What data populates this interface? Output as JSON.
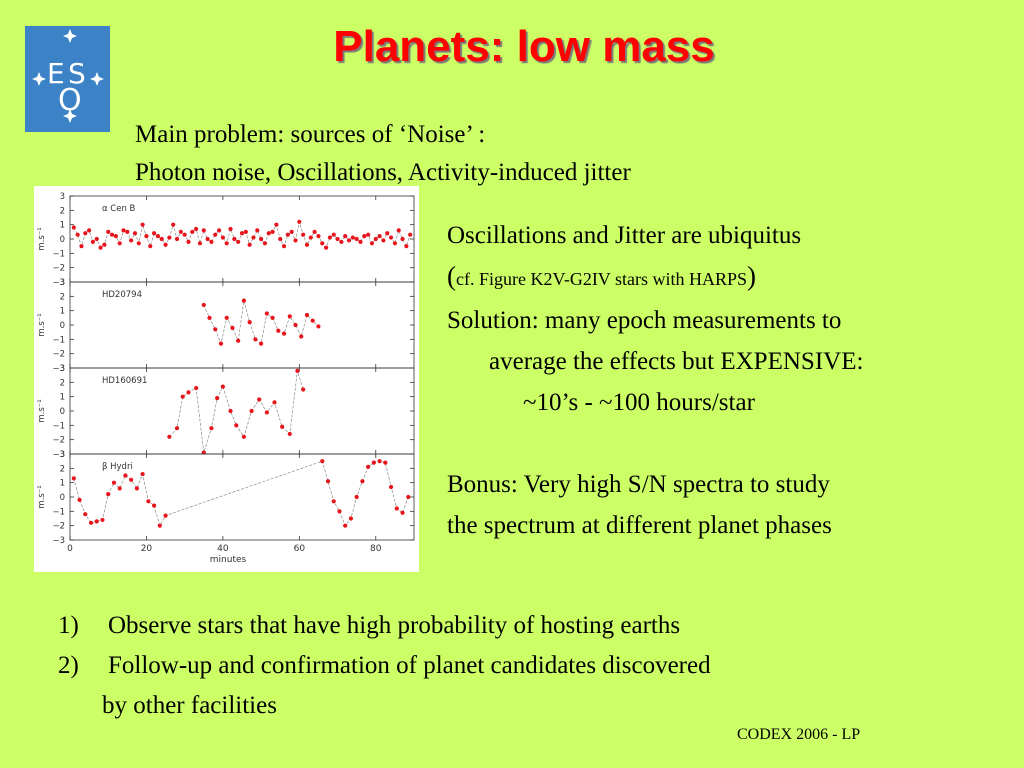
{
  "title": "Planets: low mass",
  "logo": {
    "letters": [
      "E",
      "S",
      "O"
    ],
    "icon": "eso-logo"
  },
  "intro": [
    "Main problem: sources of ‘Noise’ :",
    "Photon noise, Oscillations, Activity-induced jitter"
  ],
  "right": {
    "line1": "Oscillations and Jitter are ubiquitus",
    "line2_open": "(",
    "line2_text": "cf. Figure K2V-G2IV stars with HARPS",
    "line2_close": ")",
    "line3": "Solution: many epoch measurements to",
    "line4": "average the effects but EXPENSIVE:",
    "line5": "~10’s - ~100 hours/star",
    "line6": "Bonus: Very high S/N spectra to study",
    "line7": "the spectrum at different planet phases"
  },
  "list": {
    "items": [
      {
        "num": "1)",
        "text": "Observe stars that have high probability of hosting earths"
      },
      {
        "num": "2)",
        "text": "Follow-up and confirmation of planet candidates discovered"
      }
    ],
    "continuation": "by other facilities"
  },
  "footer": "CODEX  2006 - LP",
  "chart_data": {
    "type": "scatter",
    "xlabel": "minutes",
    "xticks": [
      0,
      20,
      40,
      60,
      80
    ],
    "xlim": [
      0,
      90
    ],
    "ylabel": "m.s⁻¹",
    "panels": [
      {
        "name": "α Cen B",
        "ylim": [
          -3,
          3
        ],
        "yticks": [
          3,
          2,
          1,
          0,
          -1,
          -2,
          -3
        ],
        "x": [
          1,
          2,
          3,
          4,
          5,
          6,
          7,
          8,
          9,
          10,
          11,
          12,
          13,
          14,
          15,
          16,
          17,
          18,
          19,
          20,
          21,
          22,
          23,
          24,
          25,
          26,
          27,
          28,
          29,
          30,
          31,
          32,
          33,
          34,
          35,
          36,
          37,
          38,
          39,
          40,
          41,
          42,
          43,
          44,
          45,
          46,
          47,
          48,
          49,
          50,
          51,
          52,
          53,
          54,
          55,
          56,
          57,
          58,
          59,
          60,
          61,
          62,
          63,
          64,
          65,
          66,
          67,
          68,
          69,
          70,
          71,
          72,
          73,
          74,
          75,
          76,
          77,
          78,
          79,
          80,
          81,
          82,
          83,
          84,
          85,
          86,
          87,
          88,
          89
        ],
        "y": [
          0.8,
          0.3,
          -0.5,
          0.4,
          0.6,
          -0.2,
          0,
          -0.6,
          -0.4,
          0.5,
          0.3,
          0.2,
          -0.3,
          0.6,
          0.5,
          -0.1,
          0.4,
          -0.3,
          1.0,
          0.2,
          -0.5,
          0.4,
          0.2,
          0,
          -0.4,
          0.1,
          1.0,
          0,
          0.5,
          0.3,
          -0.2,
          0.5,
          0.7,
          -0.3,
          0.6,
          0,
          -0.2,
          0.3,
          0.6,
          0.1,
          -0.3,
          0.7,
          0,
          -0.2,
          0.4,
          0.5,
          -0.4,
          0.1,
          0.6,
          0,
          -0.3,
          0.4,
          0.5,
          1.0,
          0,
          -0.5,
          0.3,
          0.5,
          -0.1,
          1.2,
          0.3,
          -0.4,
          0.1,
          0.5,
          0.2,
          -0.3,
          -0.6,
          0.1,
          0.3,
          0,
          -0.2,
          0.2,
          -0.1,
          0.1,
          0,
          -0.2,
          0.2,
          0.3,
          -0.3,
          0,
          0.2,
          -0.1,
          0.4,
          0.1,
          -0.3,
          0.6,
          0,
          -0.5,
          0.3
        ]
      },
      {
        "name": "HD20794",
        "ylim": [
          -3,
          3
        ],
        "yticks": [
          3,
          2,
          1,
          0,
          -1,
          -2,
          -3
        ],
        "x": [
          35,
          36.5,
          38,
          39.5,
          41,
          42.5,
          44,
          45.5,
          47,
          48.5,
          50,
          51.5,
          53,
          54.5,
          56,
          57.5,
          59,
          60.5,
          62,
          63.5,
          65
        ],
        "y": [
          1.4,
          0.5,
          -0.3,
          -1.3,
          0.5,
          -0.2,
          -1.1,
          1.7,
          0.2,
          -1.0,
          -1.3,
          0.8,
          0.5,
          -0.4,
          -0.6,
          0.6,
          0,
          -0.8,
          0.7,
          0.3,
          -0.1
        ]
      },
      {
        "name": "HD160691",
        "ylim": [
          -3,
          3
        ],
        "yticks": [
          3,
          2,
          1,
          0,
          -1,
          -2,
          -3
        ],
        "x": [
          26,
          28,
          29.5,
          31,
          33,
          35,
          37,
          38.5,
          40,
          42,
          43.5,
          45.5,
          47.5,
          49.5,
          51.5,
          53.5,
          55.5,
          57.5,
          59.5,
          61
        ],
        "y": [
          -1.8,
          -1.2,
          1.0,
          1.3,
          1.6,
          -2.9,
          -1.2,
          0.9,
          1.7,
          0,
          -1.0,
          -1.8,
          0,
          0.8,
          -0.1,
          0.6,
          -1.1,
          -1.6,
          2.8,
          1.5
        ]
      },
      {
        "name": "β Hydri",
        "ylim": [
          -3,
          3
        ],
        "yticks": [
          3,
          2,
          1,
          0,
          -1,
          -2,
          -3
        ],
        "x": [
          1,
          2.5,
          4,
          5.5,
          7,
          8.5,
          10,
          11.5,
          13,
          14.5,
          16,
          17.5,
          19,
          20.5,
          22,
          23.5,
          25,
          66,
          67.5,
          69,
          70.5,
          72,
          73.5,
          75,
          76.5,
          78,
          79.5,
          81,
          82.5,
          84,
          85.5,
          87,
          88.5
        ],
        "y": [
          1.3,
          -0.2,
          -1.2,
          -1.8,
          -1.7,
          -1.6,
          0.2,
          1.0,
          0.6,
          1.5,
          1.2,
          0.6,
          1.6,
          -0.3,
          -0.6,
          -2.0,
          -1.3,
          2.5,
          1.1,
          -0.3,
          -1.0,
          -2.0,
          -1.5,
          0,
          1.1,
          2.1,
          2.4,
          2.5,
          2.4,
          0.7,
          -0.8,
          -1.1,
          0
        ]
      }
    ]
  }
}
